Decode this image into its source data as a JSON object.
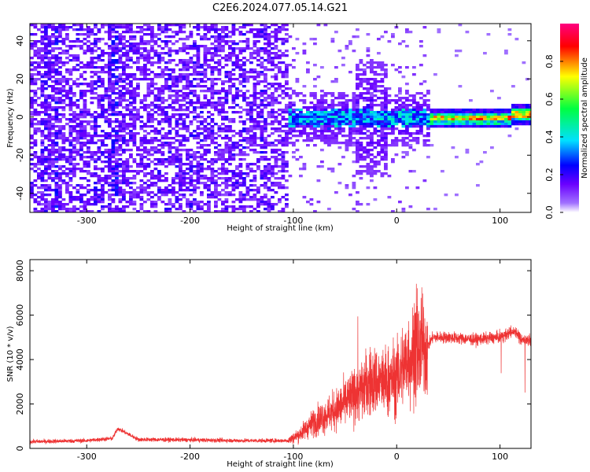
{
  "title": "C2E6.2024.077.05.14.G21",
  "chart_data": [
    {
      "type": "heatmap",
      "xlabel": "Height of straight line (km)",
      "ylabel": "Frequency (Hz)",
      "xlim": [
        -355,
        130
      ],
      "ylim": [
        -50,
        49
      ],
      "xticks": [
        -300,
        -200,
        -100,
        0,
        100
      ],
      "yticks": [
        -40,
        -20,
        0,
        20,
        40
      ],
      "colorbar": {
        "label": "Normalized spectral amplitude",
        "range": [
          0,
          1
        ],
        "ticks": [
          0.0,
          0.2,
          0.4,
          0.6,
          0.8
        ],
        "colormap": [
          "#ffffff",
          "#6a00ff",
          "#0000ff",
          "#00e0ff",
          "#00ff40",
          "#ffff00",
          "#ff0000",
          "#ff0080"
        ]
      },
      "grid": false
    },
    {
      "type": "line",
      "xlabel": "Height of straight line (km)",
      "ylabel": "SNR (10 * v/v)",
      "xlim": [
        -355,
        130
      ],
      "ylim": [
        0,
        8500
      ],
      "xticks": [
        -300,
        -200,
        -100,
        0,
        100
      ],
      "yticks": [
        0,
        2000,
        4000,
        6000,
        8000
      ],
      "line_color": "#ee3333",
      "grid": false,
      "x": [
        -355,
        -300,
        -275,
        -270,
        -250,
        -200,
        -150,
        -105,
        -95,
        -80,
        -60,
        -40,
        -25,
        -10,
        0,
        10,
        20,
        30,
        35,
        50,
        75,
        100,
        115,
        120,
        130
      ],
      "y": [
        300,
        350,
        450,
        900,
        400,
        380,
        350,
        350,
        600,
        1200,
        1700,
        2400,
        3000,
        3000,
        3200,
        4000,
        4300,
        4600,
        5000,
        5000,
        4900,
        5000,
        5300,
        4900,
        4900
      ]
    }
  ]
}
